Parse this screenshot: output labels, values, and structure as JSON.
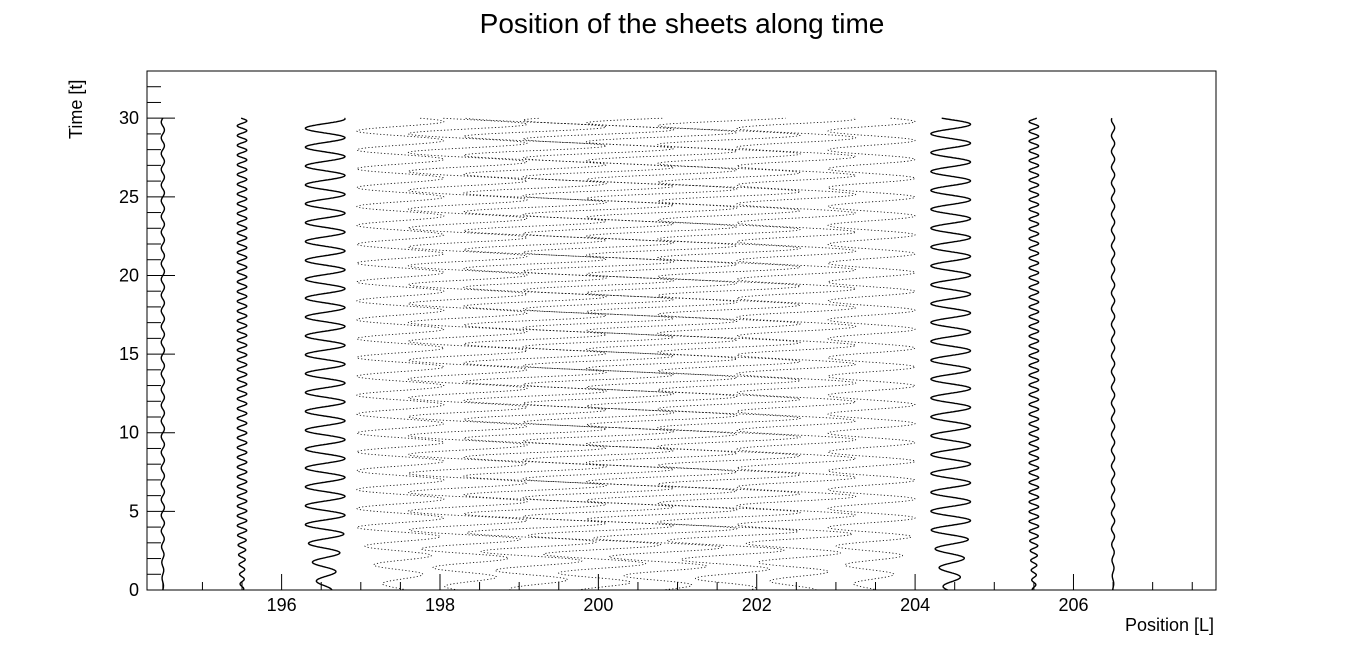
{
  "chart_data": {
    "type": "line",
    "title": "Position of the sheets along time",
    "xlabel": "Position [L]",
    "ylabel": "Time [t]",
    "xlim": [
      194.3,
      207.8
    ],
    "ylim": [
      0,
      33
    ],
    "x_ticks": [
      196,
      198,
      200,
      202,
      204,
      206
    ],
    "y_ticks": [
      0,
      5,
      10,
      15,
      20,
      25,
      30
    ],
    "grid": false,
    "legend": "none",
    "line_color": "#000000",
    "t_max": 30,
    "sheets": [
      {
        "x0": 194.5,
        "amp": 0.02,
        "period": 1.0
      },
      {
        "x0": 195.5,
        "amp": 0.06,
        "period": 0.62
      },
      {
        "x0": 196.55,
        "amp": 0.25,
        "period": 1.2
      },
      {
        "x0": 197.5,
        "amp": 0.55,
        "period": 1.2
      },
      {
        "x0": 198.35,
        "amp": 0.75,
        "period": 1.2
      },
      {
        "x0": 199.2,
        "amp": 0.9,
        "period": 1.2
      },
      {
        "x0": 200.0,
        "amp": 0.95,
        "period": 1.2
      },
      {
        "x0": 200.8,
        "amp": 0.95,
        "period": 1.2
      },
      {
        "x0": 201.65,
        "amp": 0.9,
        "period": 1.2
      },
      {
        "x0": 202.5,
        "amp": 0.75,
        "period": 1.2
      },
      {
        "x0": 203.45,
        "amp": 0.55,
        "period": 1.2
      },
      {
        "x0": 204.45,
        "amp": 0.25,
        "period": 1.2
      },
      {
        "x0": 205.5,
        "amp": 0.06,
        "period": 0.62
      },
      {
        "x0": 206.5,
        "amp": 0.02,
        "period": 1.0
      }
    ]
  }
}
